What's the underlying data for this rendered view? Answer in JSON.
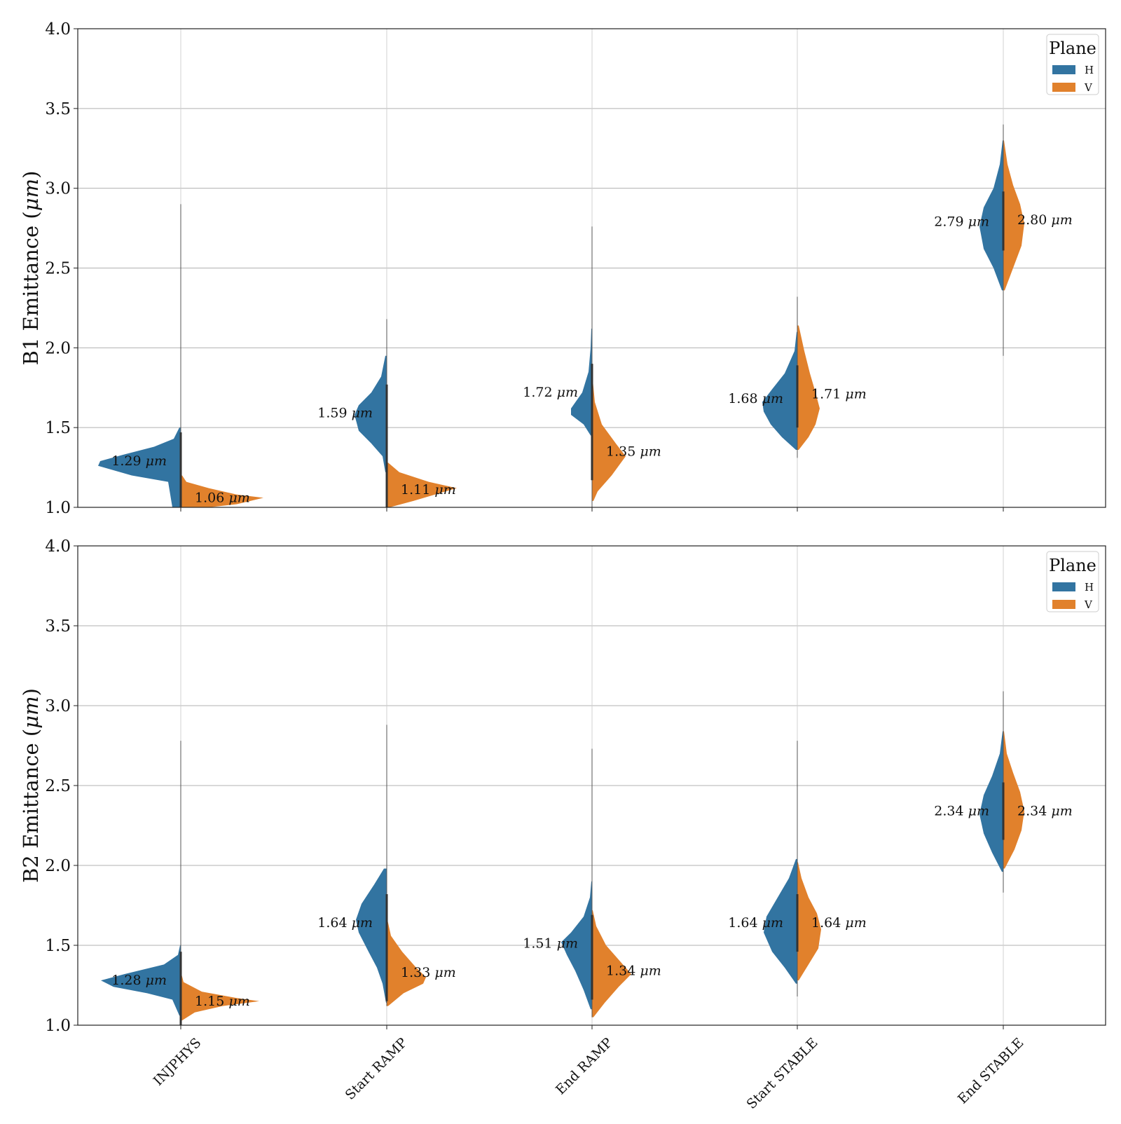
{
  "chart_data": [
    {
      "type": "violin",
      "split": true,
      "ylabel": "B1 Emittance (μm)",
      "ylim": [
        1.0,
        4.0
      ],
      "yticks": [
        "1.0",
        "1.5",
        "2.0",
        "2.5",
        "3.0",
        "3.5",
        "4.0"
      ],
      "grid": true,
      "categories": [
        "INJPHYS",
        "Start RAMP",
        "End RAMP",
        "Start STABLE",
        "End STABLE"
      ],
      "legend": {
        "title": "Plane",
        "placement": "top-right",
        "entries": [
          "H",
          "V"
        ]
      },
      "series": [
        {
          "name": "H",
          "color": "#3274a1",
          "medians": [
            1.29,
            1.59,
            1.72,
            1.68,
            2.79
          ],
          "labels": [
            "1.29 μm",
            "1.59 μm",
            "1.72 μm",
            "1.68 μm",
            "2.79 μm"
          ]
        },
        {
          "name": "V",
          "color": "#e1812c",
          "medians": [
            1.06,
            1.11,
            1.35,
            1.71,
            2.8
          ],
          "labels": [
            "1.06 μm",
            "1.11 μm",
            "1.35 μm",
            "1.71 μm",
            "2.80 μm"
          ]
        }
      ]
    },
    {
      "type": "violin",
      "split": true,
      "ylabel": "B2 Emittance (μm)",
      "ylim": [
        1.0,
        4.0
      ],
      "yticks": [
        "1.0",
        "1.5",
        "2.0",
        "2.5",
        "3.0",
        "3.5",
        "4.0"
      ],
      "grid": true,
      "categories": [
        "INJPHYS",
        "Start RAMP",
        "End RAMP",
        "Start STABLE",
        "End STABLE"
      ],
      "legend": {
        "title": "Plane",
        "placement": "top-right",
        "entries": [
          "H",
          "V"
        ]
      },
      "series": [
        {
          "name": "H",
          "color": "#3274a1",
          "medians": [
            1.28,
            1.64,
            1.51,
            1.64,
            2.34
          ],
          "labels": [
            "1.28 μm",
            "1.64 μm",
            "1.51 μm",
            "1.64 μm",
            "2.34 μm"
          ]
        },
        {
          "name": "V",
          "color": "#e1812c",
          "medians": [
            1.15,
            1.33,
            1.34,
            1.64,
            2.34
          ],
          "labels": [
            "1.15 μm",
            "1.33 μm",
            "1.34 μm",
            "1.64 μm",
            "2.34 μm"
          ]
        }
      ]
    }
  ]
}
